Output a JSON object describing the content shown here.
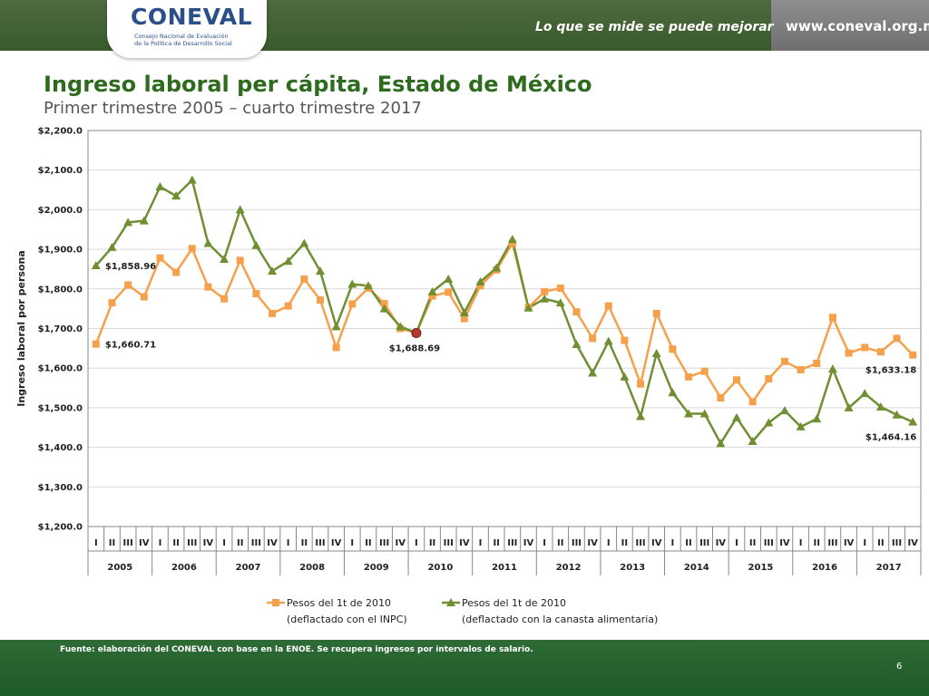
{
  "header": {
    "logo_text": "CONEVAL",
    "logo_sub_line1": "Consejo Nacional de Evaluación",
    "logo_sub_line2": "de la Política de Desarrollo Social",
    "tagline": "Lo que se mide se puede mejorar",
    "url": "www.coneval.org.mx"
  },
  "slide": {
    "title": "Ingreso laboral per cápita, Estado de México",
    "subtitle": "Primer trimestre 2005 – cuarto trimestre 2017"
  },
  "footer": {
    "source": "Fuente: elaboración del CONEVAL con base en la ENOE. Se recupera ingresos por intervalos de salario.",
    "page_number": "6"
  },
  "colors": {
    "series_inpc": "#f5a04a",
    "series_canasta": "#6f8f32",
    "highlight": "#b5392e",
    "grid": "#d9d9d9"
  },
  "chart_data": {
    "type": "line",
    "ylabel": "Ingreso laboral por persona",
    "ylim": [
      1200,
      2200
    ],
    "yticks": [
      "$1,200.0",
      "$1,300.0",
      "$1,400.0",
      "$1,500.0",
      "$1,600.0",
      "$1,700.0",
      "$1,800.0",
      "$1,900.0",
      "$2,000.0",
      "$2,100.0",
      "$2,200.0"
    ],
    "quarter_labels": [
      "I",
      "II",
      "III",
      "IV"
    ],
    "years": [
      "2005",
      "2006",
      "2007",
      "2008",
      "2009",
      "2010",
      "2011",
      "2012",
      "2013",
      "2014",
      "2015",
      "2016",
      "2017"
    ],
    "legend_position": "bottom",
    "series": [
      {
        "name_line1": "Pesos del 1t de 2010",
        "name_line2": "(deflactado con el INPC)",
        "marker": "square",
        "values": [
          1660.71,
          1765,
          1810,
          1780,
          1878,
          1842,
          1902,
          1805,
          1775,
          1872,
          1788,
          1738,
          1757,
          1825,
          1772,
          1652,
          1762,
          1802,
          1763,
          1700,
          1688.69,
          1782,
          1792,
          1725,
          1808,
          1848,
          1915,
          1753,
          1793,
          1802,
          1742,
          1675,
          1757,
          1670,
          1560,
          1738,
          1648,
          1578,
          1592,
          1525,
          1570,
          1515,
          1573,
          1617,
          1596,
          1612,
          1728,
          1638,
          1652,
          1641,
          1675,
          1633.18
        ]
      },
      {
        "name_line1": "Pesos del 1t de 2010",
        "name_line2": "(deflactado con la canasta alimentaria)",
        "marker": "triangle",
        "values": [
          1858.96,
          1905,
          1968,
          1972,
          2058,
          2035,
          2075,
          1915,
          1875,
          2000,
          1910,
          1845,
          1870,
          1915,
          1845,
          1705,
          1812,
          1808,
          1750,
          1705,
          1688.69,
          1793,
          1825,
          1740,
          1818,
          1853,
          1925,
          1752,
          1775,
          1765,
          1660,
          1588,
          1668,
          1578,
          1478,
          1637,
          1538,
          1485,
          1485,
          1410,
          1475,
          1415,
          1462,
          1493,
          1452,
          1472,
          1598,
          1500,
          1536,
          1502,
          1482,
          1464.16
        ]
      }
    ],
    "annotations": [
      {
        "text": "$1,858.96",
        "series": 1,
        "index": 0
      },
      {
        "text": "$1,660.71",
        "series": 0,
        "index": 0
      },
      {
        "text": "$1,688.69",
        "series": 0,
        "index": 20
      },
      {
        "text": "$1,633.18",
        "series": 0,
        "index": 51
      },
      {
        "text": "$1,464.16",
        "series": 1,
        "index": 51
      }
    ]
  }
}
